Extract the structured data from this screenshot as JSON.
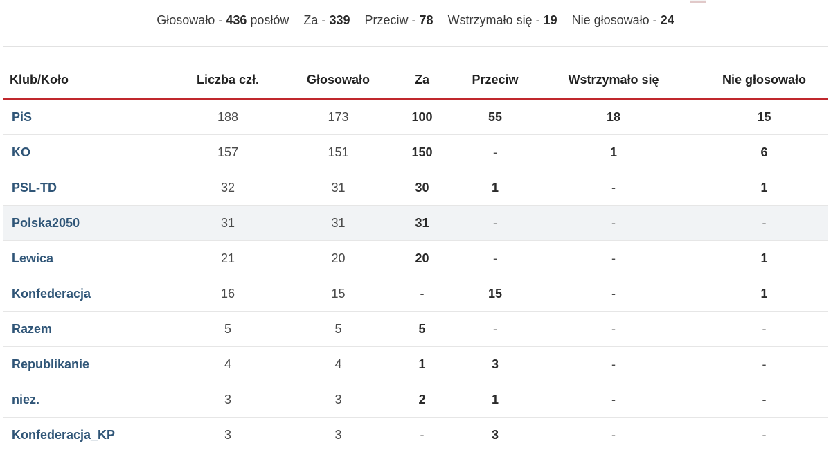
{
  "summary": {
    "glosowalo_label": "Głosowało - ",
    "glosowalo_value": "436",
    "glosowalo_suffix": " posłów",
    "za_label": "Za - ",
    "za_value": "339",
    "przeciw_label": "Przeciw - ",
    "przeciw_value": "78",
    "wstrzymalo_label": "Wstrzymało się - ",
    "wstrzymalo_value": "19",
    "nie_glosowalo_label": "Nie głosowało - ",
    "nie_glosowalo_value": "24"
  },
  "table": {
    "headers": [
      "Klub/Koło",
      "Liczba czł.",
      "Głosowało",
      "Za",
      "Przeciw",
      "Wstrzymało się",
      "Nie głosowało"
    ],
    "rows": [
      [
        "PiS",
        "188",
        "173",
        "100",
        "55",
        "18",
        "15"
      ],
      [
        "KO",
        "157",
        "151",
        "150",
        "-",
        "1",
        "6"
      ],
      [
        "PSL-TD",
        "32",
        "31",
        "30",
        "1",
        "-",
        "1"
      ],
      [
        "Polska2050",
        "31",
        "31",
        "31",
        "-",
        "-",
        "-"
      ],
      [
        "Lewica",
        "21",
        "20",
        "20",
        "-",
        "-",
        "1"
      ],
      [
        "Konfederacja",
        "16",
        "15",
        "-",
        "15",
        "-",
        "1"
      ],
      [
        "Razem",
        "5",
        "5",
        "5",
        "-",
        "-",
        "-"
      ],
      [
        "Republikanie",
        "4",
        "4",
        "1",
        "3",
        "-",
        "-"
      ],
      [
        "niez.",
        "3",
        "3",
        "2",
        "1",
        "-",
        "-"
      ],
      [
        "Konfederacja_KP",
        "3",
        "3",
        "-",
        "3",
        "-",
        "-"
      ]
    ]
  },
  "colors": {
    "header_rule": "#c0282d",
    "club_link": "#2f5577",
    "highlight_row": "#f1f3f5"
  },
  "icons": {
    "corner": "document-icon"
  }
}
